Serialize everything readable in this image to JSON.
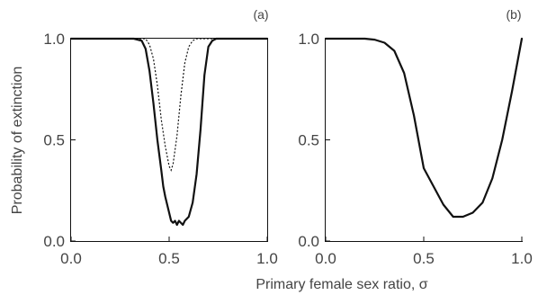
{
  "figure": {
    "xlabel": "Primary female sex ratio, σ",
    "ylabel": "Probability of extinction"
  },
  "chart_data": [
    {
      "type": "line",
      "panel_label": "(a)",
      "xlim": [
        0,
        1
      ],
      "ylim": [
        0,
        1
      ],
      "x_ticks": [
        "0.0",
        "0.5",
        "1.0"
      ],
      "y_ticks": [
        "0.0",
        "0.5",
        "1.0"
      ],
      "grid": false,
      "series": [
        {
          "style": "solid",
          "x": [
            0,
            0.32,
            0.36,
            0.38,
            0.4,
            0.42,
            0.44,
            0.46,
            0.47,
            0.48,
            0.49,
            0.5,
            0.51,
            0.52,
            0.53,
            0.54,
            0.55,
            0.56,
            0.57,
            0.58,
            0.6,
            0.62,
            0.64,
            0.66,
            0.68,
            0.7,
            0.72,
            0.74,
            1.0
          ],
          "y": [
            1.0,
            1.0,
            0.99,
            0.95,
            0.84,
            0.68,
            0.5,
            0.35,
            0.27,
            0.22,
            0.18,
            0.14,
            0.1,
            0.09,
            0.1,
            0.08,
            0.1,
            0.09,
            0.08,
            0.1,
            0.12,
            0.19,
            0.33,
            0.55,
            0.82,
            0.96,
            0.99,
            1.0,
            1.0
          ]
        },
        {
          "style": "dotted",
          "x": [
            0,
            0.38,
            0.4,
            0.42,
            0.44,
            0.46,
            0.48,
            0.5,
            0.51,
            0.52,
            0.54,
            0.56,
            0.58,
            0.6,
            0.62,
            0.64,
            0.66,
            0.7,
            1.0
          ],
          "y": [
            1.0,
            1.0,
            0.97,
            0.9,
            0.77,
            0.6,
            0.47,
            0.37,
            0.35,
            0.38,
            0.52,
            0.72,
            0.88,
            0.96,
            0.99,
            1.0,
            1.0,
            1.0,
            1.0
          ]
        }
      ]
    },
    {
      "type": "line",
      "panel_label": "(b)",
      "xlim": [
        0,
        1
      ],
      "ylim": [
        0,
        1
      ],
      "x_ticks": [
        "0.0",
        "0.5",
        "1.0"
      ],
      "y_ticks": [
        "0.0",
        "0.5",
        "1.0"
      ],
      "grid": false,
      "series": [
        {
          "style": "solid",
          "x": [
            0,
            0.2,
            0.25,
            0.3,
            0.35,
            0.4,
            0.45,
            0.5,
            0.55,
            0.6,
            0.65,
            0.7,
            0.75,
            0.8,
            0.85,
            0.9,
            0.95,
            1.0
          ],
          "y": [
            1.0,
            1.0,
            0.995,
            0.98,
            0.94,
            0.83,
            0.62,
            0.36,
            0.27,
            0.18,
            0.12,
            0.12,
            0.14,
            0.19,
            0.31,
            0.5,
            0.74,
            1.0
          ]
        }
      ]
    }
  ]
}
